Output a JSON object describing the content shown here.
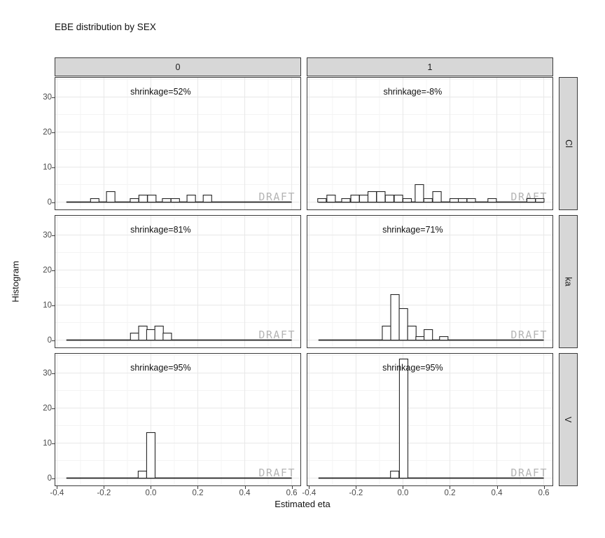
{
  "title": "EBE distribution by SEX",
  "watermark": "DRAFT",
  "axes": {
    "x_label": "Estimated eta",
    "y_label": "Histogram",
    "x_ticks": [
      "-0.4",
      "-0.2",
      "0.0",
      "0.2",
      "0.4",
      "0.6"
    ],
    "x_tick_values": [
      -0.4,
      -0.2,
      0.0,
      0.2,
      0.4,
      0.6
    ],
    "x_minor_values": [
      -0.3,
      -0.1,
      0.1,
      0.3,
      0.5
    ],
    "y_ticks": [
      "0",
      "10",
      "20",
      "30"
    ],
    "y_tick_values": [
      0,
      10,
      20,
      30
    ],
    "y_minor_values": [
      5,
      15,
      25,
      35
    ],
    "x_range": [
      -0.41,
      0.64
    ],
    "y_range": [
      -2.3,
      35.7
    ],
    "grid": "major+minor"
  },
  "facets": {
    "col_variable": "SEX",
    "col_labels": [
      "0",
      "1"
    ],
    "row_labels": [
      "Cl",
      "ka",
      "V"
    ]
  },
  "chart_data": {
    "type": "bar",
    "subtype": "histogram-faceted",
    "title": "EBE distribution by SEX",
    "xlabel": "Estimated eta",
    "ylabel": "Histogram",
    "xlim": [
      -0.41,
      0.64
    ],
    "ylim": [
      -2.3,
      35.7
    ],
    "binwidth": 0.036,
    "baseline_span": [
      -0.36,
      0.6
    ],
    "panels": [
      {
        "row": "Cl",
        "col": "0",
        "shrinkage_label": "shrinkage=52%",
        "bars": [
          [
            -0.239,
            1
          ],
          [
            -0.171,
            3
          ],
          [
            -0.07,
            1
          ],
          [
            -0.033,
            2
          ],
          [
            0.004,
            2
          ],
          [
            0.067,
            1
          ],
          [
            0.104,
            1
          ],
          [
            0.172,
            2
          ],
          [
            0.241,
            2
          ]
        ]
      },
      {
        "row": "Cl",
        "col": "1",
        "shrinkage_label": "shrinkage=-8%",
        "bars": [
          [
            -0.345,
            1
          ],
          [
            -0.306,
            2
          ],
          [
            -0.243,
            1
          ],
          [
            -0.204,
            2
          ],
          [
            -0.167,
            2
          ],
          [
            -0.131,
            3
          ],
          [
            -0.094,
            3
          ],
          [
            -0.057,
            2
          ],
          [
            -0.019,
            2
          ],
          [
            0.018,
            1
          ],
          [
            0.07,
            5
          ],
          [
            0.107,
            1
          ],
          [
            0.145,
            3
          ],
          [
            0.218,
            1
          ],
          [
            0.254,
            1
          ],
          [
            0.291,
            1
          ],
          [
            0.38,
            1
          ],
          [
            0.546,
            1
          ],
          [
            0.583,
            1
          ]
        ]
      },
      {
        "row": "ka",
        "col": "0",
        "shrinkage_label": "shrinkage=81%",
        "bars": [
          [
            -0.069,
            2
          ],
          [
            -0.034,
            4
          ],
          [
            0.0,
            3
          ],
          [
            0.035,
            4
          ],
          [
            0.07,
            2
          ]
        ]
      },
      {
        "row": "ka",
        "col": "1",
        "shrinkage_label": "shrinkage=71%",
        "bars": [
          [
            -0.07,
            4
          ],
          [
            -0.034,
            13
          ],
          [
            0.002,
            9
          ],
          [
            0.038,
            4
          ],
          [
            0.073,
            1
          ],
          [
            0.108,
            3
          ],
          [
            0.174,
            1
          ]
        ]
      },
      {
        "row": "V",
        "col": "0",
        "shrinkage_label": "shrinkage=95%",
        "bars": [
          [
            -0.036,
            2
          ],
          [
            0.0,
            13
          ]
        ]
      },
      {
        "row": "V",
        "col": "1",
        "shrinkage_label": "shrinkage=95%",
        "bars": [
          [
            -0.035,
            2
          ],
          [
            0.003,
            34
          ]
        ]
      }
    ]
  },
  "colors": {
    "background": "#ffffff",
    "strip_fill": "#d7d7d7",
    "strip_border": "#3b3b3b",
    "panel_border": "#3b3b3b",
    "grid_major": "#e8e8e8",
    "grid_minor": "#f4f4f4",
    "bar_fill": "#ffffff",
    "bar_stroke": "#262626",
    "baseline": "#1f1f1f",
    "axis_text": "#4a4a4a",
    "watermark_text": "#b5b5b5",
    "label_text": "#111111"
  }
}
